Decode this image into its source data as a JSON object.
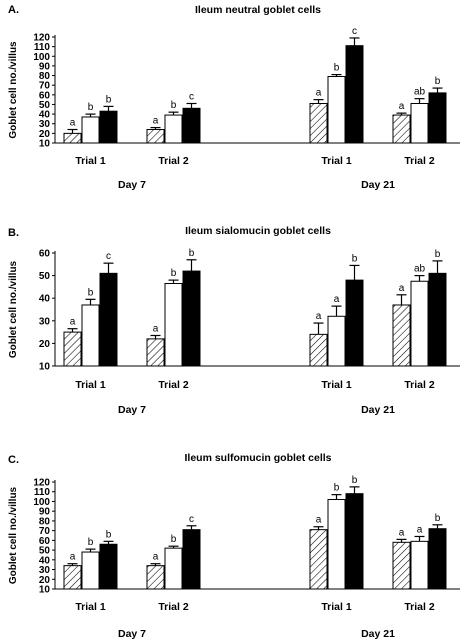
{
  "chart_data": [
    {
      "type": "bar",
      "panel_label": "A.",
      "title": "Ileum neutral goblet cells",
      "ylabel": "Goblet cell no./villus",
      "ylim": [
        10,
        120
      ],
      "yticks": [
        10,
        20,
        30,
        40,
        50,
        60,
        70,
        80,
        90,
        100,
        110,
        120
      ],
      "groups": [
        {
          "day": "Day 7",
          "trials": [
            {
              "label": "Trial 1",
              "values": [
                20,
                37,
                43
              ],
              "errors": [
                4,
                3,
                5
              ],
              "letters": [
                "a",
                "b",
                "b"
              ]
            },
            {
              "label": "Trial 2",
              "values": [
                24,
                39,
                46
              ],
              "errors": [
                2,
                3,
                5
              ],
              "letters": [
                "a",
                "b",
                "c"
              ]
            }
          ]
        },
        {
          "day": "Day 21",
          "trials": [
            {
              "label": "Trial 1",
              "values": [
                51,
                79,
                111
              ],
              "errors": [
                4,
                2,
                8
              ],
              "letters": [
                "a",
                "b",
                "c"
              ]
            },
            {
              "label": "Trial 2",
              "values": [
                39,
                51,
                62
              ],
              "errors": [
                2,
                5,
                5
              ],
              "letters": [
                "a",
                "ab",
                "b"
              ]
            }
          ]
        }
      ]
    },
    {
      "type": "bar",
      "panel_label": "B.",
      "title": "Ileum sialomucin goblet cells",
      "ylabel": "Goblet cell no./villus",
      "ylim": [
        10,
        60
      ],
      "yticks": [
        10,
        20,
        30,
        40,
        50,
        60
      ],
      "groups": [
        {
          "day": "Day 7",
          "trials": [
            {
              "label": "Trial 1",
              "values": [
                25,
                37,
                51
              ],
              "errors": [
                1.5,
                2.5,
                4.5
              ],
              "letters": [
                "a",
                "b",
                "c"
              ]
            },
            {
              "label": "Trial 2",
              "values": [
                22,
                46.5,
                52
              ],
              "errors": [
                1.5,
                1.5,
                5
              ],
              "letters": [
                "a",
                "b",
                "b"
              ]
            }
          ]
        },
        {
          "day": "Day 21",
          "trials": [
            {
              "label": "Trial 1",
              "values": [
                24,
                32,
                48
              ],
              "errors": [
                5,
                4.5,
                6.5
              ],
              "letters": [
                "a",
                "a",
                "b"
              ]
            },
            {
              "label": "Trial 2",
              "values": [
                37,
                47.5,
                51
              ],
              "errors": [
                4.5,
                2.5,
                5.5
              ],
              "letters": [
                "a",
                "ab",
                "b"
              ]
            }
          ]
        }
      ]
    },
    {
      "type": "bar",
      "panel_label": "C.",
      "title": "Ileum sulfomucin goblet cells",
      "ylabel": "Goblet cell no./villus",
      "ylim": [
        10,
        120
      ],
      "yticks": [
        10,
        20,
        30,
        40,
        50,
        60,
        70,
        80,
        90,
        100,
        110,
        120
      ],
      "groups": [
        {
          "day": "Day 7",
          "trials": [
            {
              "label": "Trial 1",
              "values": [
                34,
                48,
                56
              ],
              "errors": [
                2,
                3,
                3
              ],
              "letters": [
                "a",
                "b",
                "b"
              ]
            },
            {
              "label": "Trial 2",
              "values": [
                34,
                52,
                71
              ],
              "errors": [
                2,
                2,
                4
              ],
              "letters": [
                "a",
                "b",
                "c"
              ]
            }
          ]
        },
        {
          "day": "Day 21",
          "trials": [
            {
              "label": "Trial 1",
              "values": [
                71,
                102,
                108
              ],
              "errors": [
                3,
                5,
                7
              ],
              "letters": [
                "a",
                "b",
                "b"
              ]
            },
            {
              "label": "Trial 2",
              "values": [
                58,
                59,
                72
              ],
              "errors": [
                3,
                5,
                4
              ],
              "letters": [
                "a",
                "a",
                "b"
              ]
            }
          ]
        }
      ]
    }
  ]
}
